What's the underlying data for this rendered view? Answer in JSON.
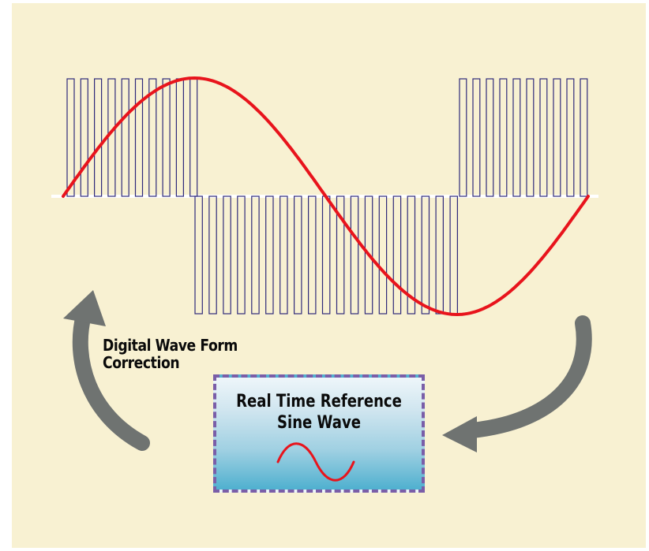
{
  "labels": {
    "correction_line1": "Digital Wave Form",
    "correction_line2": "Correction",
    "reference_line1": "Real Time Reference",
    "reference_line2": "Sine Wave"
  },
  "icons": {
    "left_arrow": "curved-arrow-up-icon",
    "right_arrow": "curved-arrow-left-icon",
    "mini_wave": "sine-wave-icon"
  },
  "colors": {
    "background": "#f8f1d2",
    "sine_wave": "#e8141c",
    "pulses": "#2f2a7a",
    "baseline": "#ffffff",
    "arrows": "#6f7371",
    "box_border": "#7a5ea8"
  }
}
